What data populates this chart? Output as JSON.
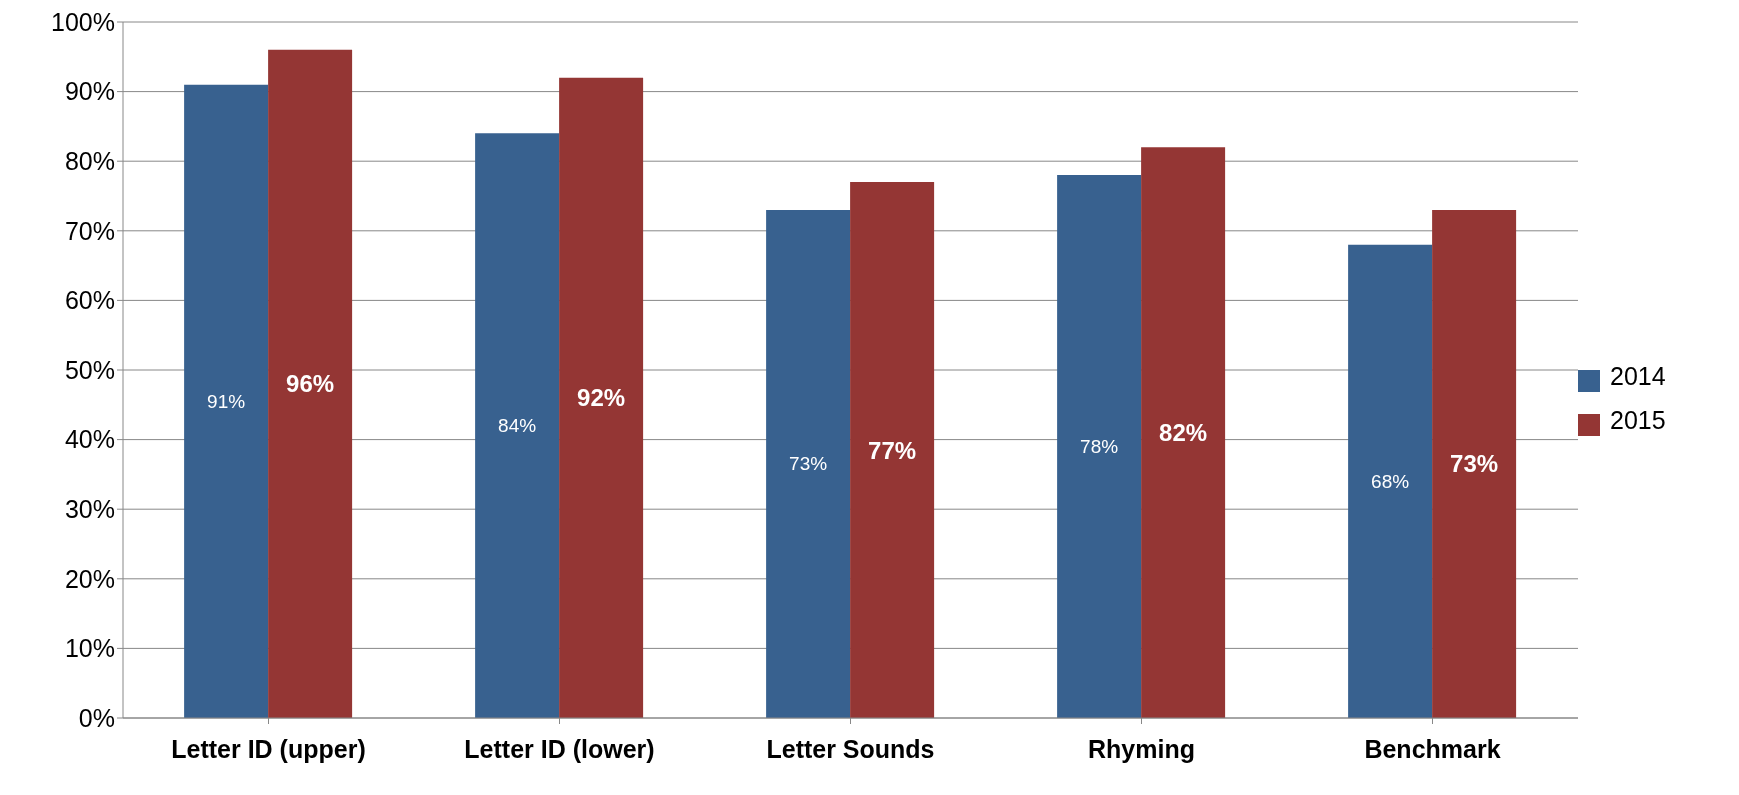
{
  "chart_data": {
    "type": "bar",
    "categories": [
      "Letter ID (upper)",
      "Letter ID (lower)",
      "Letter Sounds",
      "Rhyming",
      "Benchmark"
    ],
    "series": [
      {
        "name": "2014",
        "color": "#38618f",
        "values": [
          91,
          84,
          73,
          78,
          68
        ],
        "value_labels": [
          "91%",
          "84%",
          "73%",
          "78%",
          "68%"
        ]
      },
      {
        "name": "2015",
        "color": "#943634",
        "values": [
          96,
          92,
          77,
          82,
          73
        ],
        "value_labels": [
          "96%",
          "92%",
          "77%",
          "82%",
          "73%"
        ]
      }
    ],
    "ylim": [
      0,
      100
    ],
    "yticks": [
      {
        "value": 0,
        "label": "0%"
      },
      {
        "value": 10,
        "label": "10%"
      },
      {
        "value": 20,
        "label": "20%"
      },
      {
        "value": 30,
        "label": "30%"
      },
      {
        "value": 40,
        "label": "40%"
      },
      {
        "value": 50,
        "label": "50%"
      },
      {
        "value": 60,
        "label": "60%"
      },
      {
        "value": 70,
        "label": "70%"
      },
      {
        "value": 80,
        "label": "80%"
      },
      {
        "value": 90,
        "label": "90%"
      },
      {
        "value": 100,
        "label": "100%"
      }
    ],
    "grid": "y",
    "legend": "right"
  }
}
